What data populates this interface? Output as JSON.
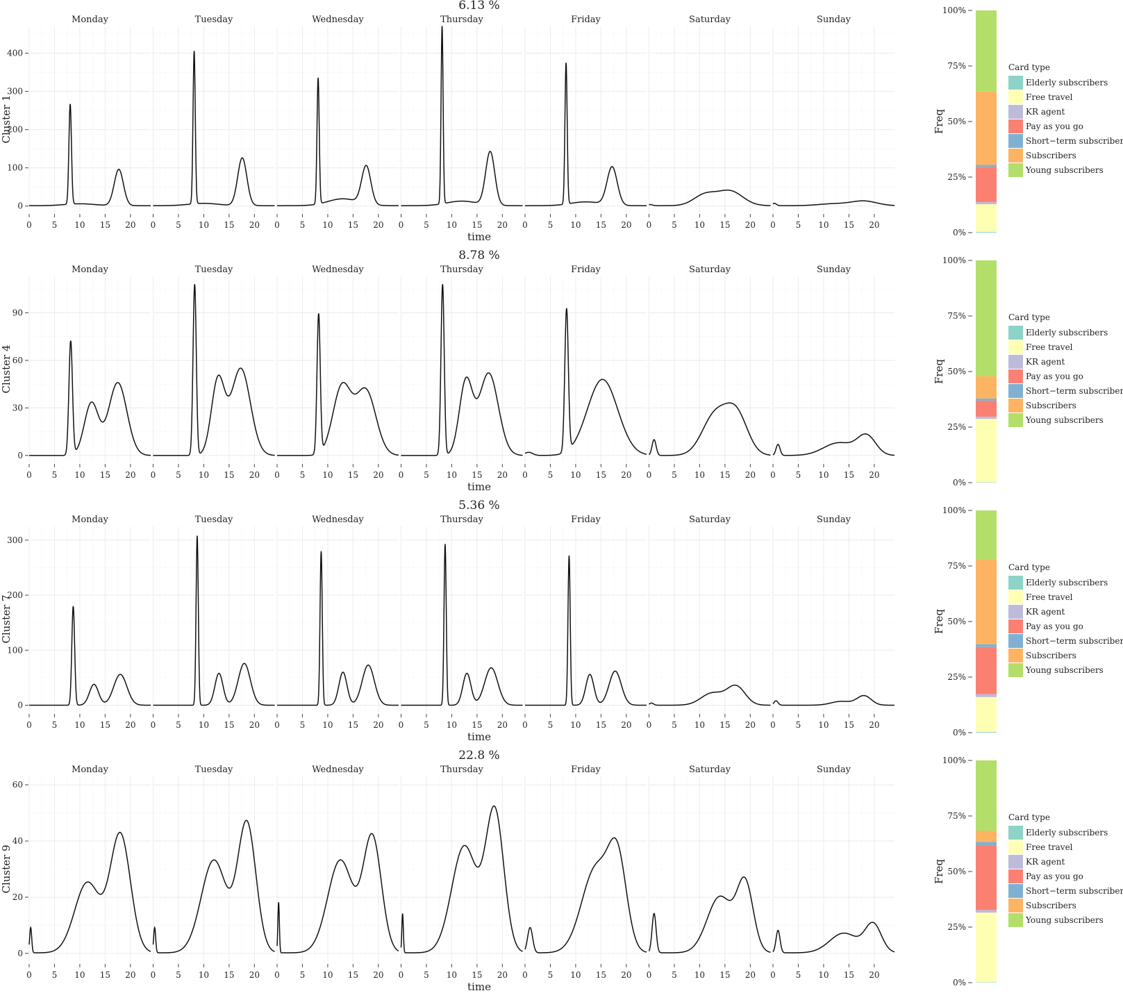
{
  "days": [
    "Monday",
    "Tuesday",
    "Wednesday",
    "Thursday",
    "Friday",
    "Saturday",
    "Sunday"
  ],
  "x_ticks": [
    0,
    5,
    10,
    15,
    20
  ],
  "x_label": "time",
  "bar_y_label": "Freq",
  "bar_y_ticks": [
    "0%",
    "25%",
    "50%",
    "75%",
    "100%"
  ],
  "legend_title": "Card type",
  "card_types": [
    "Elderly subscribers",
    "Free travel",
    "KR agent",
    "Pay as you go",
    "Short−term subscribers",
    "Subscribers",
    "Young subscribers"
  ],
  "card_colors": {
    "Elderly subscribers": "#8dd3c7",
    "Free travel": "#ffffb3",
    "KR agent": "#bebada",
    "Pay as you go": "#fb8072",
    "Short−term subscribers": "#80b1d3",
    "Subscribers": "#fdb462",
    "Young subscribers": "#b3de69"
  },
  "chart_data": [
    {
      "type": "line",
      "title": "6.13 %",
      "ylabel": "Cluster 1",
      "y_ticks": [
        0,
        100,
        200,
        300,
        400
      ],
      "ylim": [
        -15,
        470
      ],
      "profiles": {
        "Monday": {
          "base": 1,
          "comps": [
            [
              8.1,
              0.25,
              262
            ],
            [
              10,
              3,
              5
            ],
            [
              17.7,
              0.9,
              95
            ]
          ]
        },
        "Tuesday": {
          "base": 1,
          "comps": [
            [
              8.1,
              0.22,
              400
            ],
            [
              10,
              3,
              6
            ],
            [
              17.6,
              0.9,
              125
            ]
          ]
        },
        "Wednesday": {
          "base": 1,
          "comps": [
            [
              8.1,
              0.22,
              330
            ],
            [
              13,
              3,
              18
            ],
            [
              17.6,
              0.9,
              100
            ]
          ]
        },
        "Thursday": {
          "base": 1,
          "comps": [
            [
              8.1,
              0.2,
              465
            ],
            [
              12,
              3,
              12
            ],
            [
              17.6,
              0.9,
              140
            ]
          ]
        },
        "Friday": {
          "base": 1,
          "comps": [
            [
              8.1,
              0.22,
              370
            ],
            [
              12,
              3,
              10
            ],
            [
              17.2,
              1.0,
              100
            ]
          ]
        },
        "Saturday": {
          "base": 1,
          "comps": [
            [
              0.3,
              0.4,
              3
            ],
            [
              11,
              2.2,
              28
            ],
            [
              16,
              2.5,
              38
            ]
          ]
        },
        "Sunday": {
          "base": 1,
          "comps": [
            [
              0.3,
              0.4,
              6
            ],
            [
              12,
              3,
              5
            ],
            [
              18,
              2.5,
              12
            ]
          ]
        }
      },
      "composition": {
        "Elderly subscribers": 0.3,
        "Free travel": 12.5,
        "KR agent": 1.0,
        "Pay as you go": 15.8,
        "Short−term subscribers": 0.9,
        "Subscribers": 33.0,
        "Young subscribers": 36.5
      }
    },
    {
      "type": "line",
      "title": "8.78 %",
      "ylabel": "Cluster 4",
      "y_ticks": [
        0,
        30,
        60,
        90
      ],
      "ylim": [
        -4,
        113
      ],
      "profiles": {
        "Monday": {
          "base": 0,
          "comps": [
            [
              8.2,
              0.35,
              72
            ],
            [
              12.3,
              1.4,
              33
            ],
            [
              17.5,
              1.8,
              46
            ]
          ]
        },
        "Tuesday": {
          "base": 0,
          "comps": [
            [
              8.2,
              0.32,
              108
            ],
            [
              12.8,
              1.3,
              47
            ],
            [
              17.3,
              1.9,
              55
            ]
          ]
        },
        "Wednesday": {
          "base": 0,
          "comps": [
            [
              8.2,
              0.32,
              88
            ],
            [
              12.8,
              1.8,
              43
            ],
            [
              17.5,
              2.0,
              41
            ]
          ]
        },
        "Thursday": {
          "base": 0,
          "comps": [
            [
              8.2,
              0.32,
              108
            ],
            [
              12.8,
              1.3,
              46
            ],
            [
              17.3,
              1.9,
              52
            ]
          ]
        },
        "Friday": {
          "base": 0,
          "comps": [
            [
              0.7,
              0.8,
              2
            ],
            [
              8.2,
              0.35,
              90
            ],
            [
              15.3,
              3.0,
              48
            ]
          ]
        },
        "Saturday": {
          "base": 0,
          "comps": [
            [
              1,
              0.4,
              10
            ],
            [
              13,
              2.5,
              25
            ],
            [
              17.3,
              2.2,
              25
            ]
          ]
        },
        "Sunday": {
          "base": 0,
          "comps": [
            [
              1,
              0.4,
              7
            ],
            [
              13,
              3,
              8
            ],
            [
              18.5,
              1.8,
              12
            ]
          ]
        }
      },
      "composition": {
        "Elderly subscribers": 0.2,
        "Free travel": 28.5,
        "KR agent": 1.0,
        "Pay as you go": 7.2,
        "Short−term subscribers": 1.0,
        "Subscribers": 10.0,
        "Young subscribers": 52.1
      }
    },
    {
      "type": "line",
      "title": "5.36 %",
      "ylabel": "Cluster 7",
      "y_ticks": [
        0,
        100,
        200,
        300
      ],
      "ylim": [
        -12,
        325
      ],
      "profiles": {
        "Monday": {
          "base": 0,
          "comps": [
            [
              8.7,
              0.28,
              180
            ],
            [
              12.8,
              0.9,
              38
            ],
            [
              18,
              1.3,
              56
            ]
          ]
        },
        "Tuesday": {
          "base": 0,
          "comps": [
            [
              8.7,
              0.22,
              308
            ],
            [
              13,
              0.8,
              58
            ],
            [
              18,
              1.2,
              76
            ]
          ]
        },
        "Wednesday": {
          "base": 0,
          "comps": [
            [
              8.7,
              0.22,
              280
            ],
            [
              13,
              0.8,
              60
            ],
            [
              18,
              1.2,
              73
            ]
          ]
        },
        "Thursday": {
          "base": 0,
          "comps": [
            [
              8.7,
              0.22,
              293
            ],
            [
              13,
              0.8,
              58
            ],
            [
              17.8,
              1.3,
              68
            ]
          ]
        },
        "Friday": {
          "base": 0,
          "comps": [
            [
              8.7,
              0.22,
              272
            ],
            [
              12.8,
              0.8,
              56
            ],
            [
              17.8,
              1.2,
              62
            ]
          ]
        },
        "Saturday": {
          "base": 0,
          "comps": [
            [
              0.5,
              0.4,
              4
            ],
            [
              12.5,
              2.2,
              22
            ],
            [
              17.2,
              1.8,
              34
            ]
          ]
        },
        "Sunday": {
          "base": 0,
          "comps": [
            [
              0.6,
              0.4,
              8
            ],
            [
              13.5,
              2.0,
              7
            ],
            [
              18,
              1.4,
              17
            ]
          ]
        }
      },
      "composition": {
        "Elderly subscribers": 0.3,
        "Free travel": 15.7,
        "KR agent": 1.3,
        "Pay as you go": 21.2,
        "Short−term subscribers": 1.3,
        "Subscribers": 38.2,
        "Young subscribers": 22.0
      }
    },
    {
      "type": "line",
      "title": "22.8 %",
      "ylabel": "Cluster 9",
      "y_ticks": [
        0,
        20,
        40,
        60
      ],
      "ylim": [
        -3,
        63
      ],
      "profiles": {
        "Monday": {
          "base": 0.2,
          "comps": [
            [
              0.3,
              0.2,
              9
            ],
            [
              11.5,
              2.5,
              25
            ],
            [
              18,
              2.0,
              42
            ]
          ]
        },
        "Tuesday": {
          "base": 0.2,
          "comps": [
            [
              0.3,
              0.2,
              9
            ],
            [
              12,
              2.5,
              33
            ],
            [
              18.5,
              1.8,
              46
            ]
          ]
        },
        "Wednesday": {
          "base": 0.2,
          "comps": [
            [
              0.3,
              0.15,
              18
            ],
            [
              12.5,
              2.5,
              33
            ],
            [
              18.8,
              1.8,
              41
            ]
          ]
        },
        "Thursday": {
          "base": 0.2,
          "comps": [
            [
              0.3,
              0.15,
              14
            ],
            [
              12.5,
              2.5,
              38
            ],
            [
              18.5,
              1.8,
              50
            ]
          ]
        },
        "Friday": {
          "base": 0.2,
          "comps": [
            [
              1,
              0.5,
              9
            ],
            [
              14,
              2.8,
              30
            ],
            [
              18.3,
              1.8,
              30
            ]
          ]
        },
        "Saturday": {
          "base": 0.2,
          "comps": [
            [
              1,
              0.4,
              14
            ],
            [
              14,
              2.5,
              20
            ],
            [
              19,
              1.6,
              24
            ]
          ]
        },
        "Sunday": {
          "base": 0.2,
          "comps": [
            [
              1,
              0.4,
              8
            ],
            [
              14,
              2.8,
              7
            ],
            [
              19.8,
              1.6,
              10
            ]
          ]
        }
      },
      "composition": {
        "Elderly subscribers": 0.2,
        "Free travel": 31.3,
        "KR agent": 1.2,
        "Pay as you go": 29.0,
        "Short−term subscribers": 1.6,
        "Subscribers": 5.0,
        "Young subscribers": 31.7
      }
    }
  ]
}
